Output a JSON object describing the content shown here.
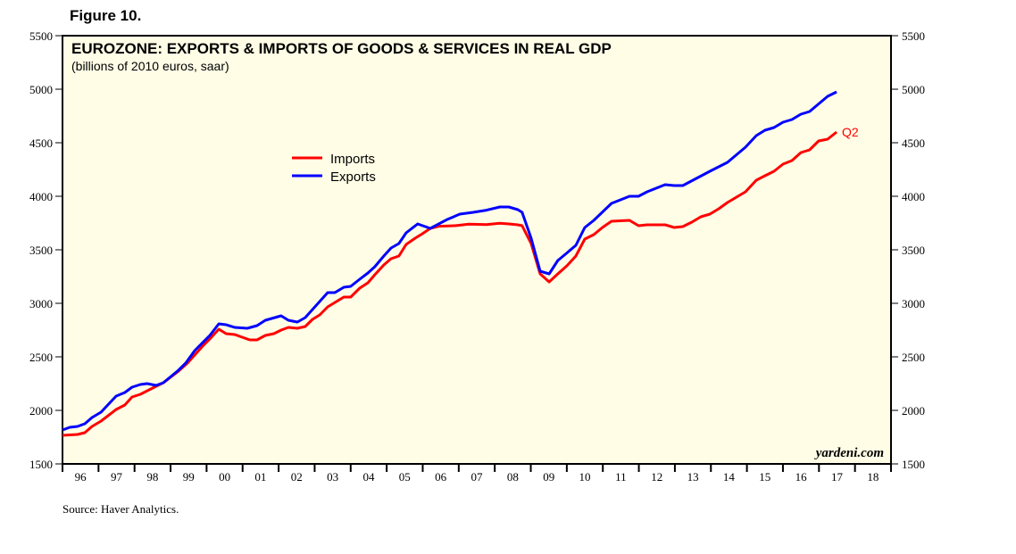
{
  "figure_label": "Figure 10.",
  "source": "Source: Haver Analytics.",
  "chart_data": {
    "type": "line",
    "title": "EUROZONE: EXPORTS & IMPORTS OF GOODS & SERVICES IN REAL GDP",
    "subtitle": "(billions of 2010 euros, saar)",
    "watermark": "yardeni.com",
    "annotation": "Q2",
    "xlim": [
      1996,
      2019
    ],
    "ylim": [
      1500,
      5500
    ],
    "yticks": [
      1500,
      2000,
      2500,
      3000,
      3500,
      4000,
      4500,
      5000,
      5500
    ],
    "xtick_labels": [
      "96",
      "97",
      "98",
      "99",
      "00",
      "01",
      "02",
      "03",
      "04",
      "05",
      "06",
      "07",
      "08",
      "09",
      "10",
      "11",
      "12",
      "13",
      "14",
      "15",
      "16",
      "17",
      "18"
    ],
    "legend_position": "upper-left",
    "background": "#fffde6",
    "series": [
      {
        "name": "Imports",
        "color": "#ff0000",
        "points": [
          [
            1996.0,
            1767
          ],
          [
            1996.42,
            1775
          ],
          [
            1996.62,
            1792
          ],
          [
            1996.82,
            1850
          ],
          [
            1997.07,
            1900
          ],
          [
            1997.49,
            2008
          ],
          [
            1997.73,
            2050
          ],
          [
            1997.93,
            2125
          ],
          [
            1998.16,
            2150
          ],
          [
            1998.55,
            2217
          ],
          [
            1998.8,
            2258
          ],
          [
            1999.22,
            2367
          ],
          [
            1999.47,
            2442
          ],
          [
            1999.89,
            2600
          ],
          [
            2000.09,
            2667
          ],
          [
            2000.34,
            2758
          ],
          [
            2000.54,
            2717
          ],
          [
            2000.78,
            2708
          ],
          [
            2001.2,
            2658
          ],
          [
            2001.4,
            2658
          ],
          [
            2001.63,
            2700
          ],
          [
            2001.87,
            2717
          ],
          [
            2002.07,
            2750
          ],
          [
            2002.27,
            2775
          ],
          [
            2002.52,
            2767
          ],
          [
            2002.74,
            2783
          ],
          [
            2002.94,
            2850
          ],
          [
            2003.14,
            2892
          ],
          [
            2003.36,
            2967
          ],
          [
            2003.81,
            3058
          ],
          [
            2004.0,
            3058
          ],
          [
            2004.25,
            3142
          ],
          [
            2004.48,
            3192
          ],
          [
            2004.67,
            3267
          ],
          [
            2004.92,
            3358
          ],
          [
            2005.12,
            3417
          ],
          [
            2005.34,
            3442
          ],
          [
            2005.54,
            3550
          ],
          [
            2005.79,
            3608
          ],
          [
            2005.99,
            3650
          ],
          [
            2006.21,
            3700
          ],
          [
            2006.46,
            3720
          ],
          [
            2006.9,
            3725
          ],
          [
            2007.28,
            3740
          ],
          [
            2007.77,
            3735
          ],
          [
            2008.14,
            3748
          ],
          [
            2008.39,
            3742
          ],
          [
            2008.64,
            3733
          ],
          [
            2008.76,
            3725
          ],
          [
            2009.01,
            3558
          ],
          [
            2009.26,
            3275
          ],
          [
            2009.51,
            3200
          ],
          [
            2009.75,
            3275
          ],
          [
            2010.0,
            3350
          ],
          [
            2010.25,
            3442
          ],
          [
            2010.5,
            3600
          ],
          [
            2010.75,
            3642
          ],
          [
            2010.99,
            3708
          ],
          [
            2011.24,
            3767
          ],
          [
            2011.74,
            3775
          ],
          [
            2011.99,
            3725
          ],
          [
            2012.23,
            3733
          ],
          [
            2012.73,
            3733
          ],
          [
            2012.98,
            3708
          ],
          [
            2013.22,
            3717
          ],
          [
            2013.47,
            3758
          ],
          [
            2013.72,
            3808
          ],
          [
            2013.97,
            3833
          ],
          [
            2014.22,
            3883
          ],
          [
            2014.46,
            3942
          ],
          [
            2014.71,
            3992
          ],
          [
            2014.96,
            4042
          ],
          [
            2015.26,
            4150
          ],
          [
            2015.5,
            4192
          ],
          [
            2015.75,
            4233
          ],
          [
            2016.0,
            4300
          ],
          [
            2016.25,
            4333
          ],
          [
            2016.5,
            4408
          ],
          [
            2016.74,
            4433
          ],
          [
            2016.99,
            4517
          ],
          [
            2017.24,
            4533
          ],
          [
            2017.49,
            4600
          ]
        ]
      },
      {
        "name": "Exports",
        "color": "#0000ff",
        "points": [
          [
            1996.0,
            1817
          ],
          [
            1996.2,
            1842
          ],
          [
            1996.42,
            1850
          ],
          [
            1996.62,
            1875
          ],
          [
            1996.82,
            1933
          ],
          [
            1997.07,
            1983
          ],
          [
            1997.49,
            2133
          ],
          [
            1997.73,
            2167
          ],
          [
            1997.93,
            2217
          ],
          [
            1998.16,
            2242
          ],
          [
            1998.35,
            2250
          ],
          [
            1998.6,
            2233
          ],
          [
            1998.8,
            2258
          ],
          [
            1999.22,
            2375
          ],
          [
            1999.42,
            2442
          ],
          [
            1999.67,
            2558
          ],
          [
            2000.09,
            2700
          ],
          [
            2000.34,
            2808
          ],
          [
            2000.54,
            2800
          ],
          [
            2000.78,
            2775
          ],
          [
            2001.13,
            2767
          ],
          [
            2001.4,
            2792
          ],
          [
            2001.63,
            2842
          ],
          [
            2002.07,
            2883
          ],
          [
            2002.27,
            2842
          ],
          [
            2002.52,
            2825
          ],
          [
            2002.74,
            2867
          ],
          [
            2003.36,
            3100
          ],
          [
            2003.56,
            3100
          ],
          [
            2003.81,
            3150
          ],
          [
            2004.0,
            3158
          ],
          [
            2004.25,
            3225
          ],
          [
            2004.48,
            3283
          ],
          [
            2004.67,
            3342
          ],
          [
            2004.92,
            3442
          ],
          [
            2005.12,
            3517
          ],
          [
            2005.34,
            3558
          ],
          [
            2005.54,
            3658
          ],
          [
            2005.86,
            3742
          ],
          [
            2006.21,
            3700
          ],
          [
            2006.66,
            3780
          ],
          [
            2007.03,
            3833
          ],
          [
            2007.4,
            3850
          ],
          [
            2007.77,
            3870
          ],
          [
            2008.14,
            3900
          ],
          [
            2008.39,
            3900
          ],
          [
            2008.64,
            3875
          ],
          [
            2008.76,
            3850
          ],
          [
            2009.01,
            3608
          ],
          [
            2009.26,
            3300
          ],
          [
            2009.51,
            3275
          ],
          [
            2009.75,
            3400
          ],
          [
            2010.0,
            3470
          ],
          [
            2010.25,
            3542
          ],
          [
            2010.5,
            3708
          ],
          [
            2010.75,
            3775
          ],
          [
            2011.24,
            3933
          ],
          [
            2011.49,
            3967
          ],
          [
            2011.74,
            4000
          ],
          [
            2011.99,
            4000
          ],
          [
            2012.23,
            4042
          ],
          [
            2012.73,
            4108
          ],
          [
            2012.98,
            4100
          ],
          [
            2013.22,
            4100
          ],
          [
            2013.97,
            4233
          ],
          [
            2014.46,
            4317
          ],
          [
            2014.96,
            4458
          ],
          [
            2015.26,
            4567
          ],
          [
            2015.5,
            4617
          ],
          [
            2015.75,
            4642
          ],
          [
            2016.0,
            4692
          ],
          [
            2016.25,
            4717
          ],
          [
            2016.5,
            4767
          ],
          [
            2016.74,
            4792
          ],
          [
            2017.24,
            4933
          ],
          [
            2017.49,
            4975
          ]
        ]
      }
    ]
  }
}
